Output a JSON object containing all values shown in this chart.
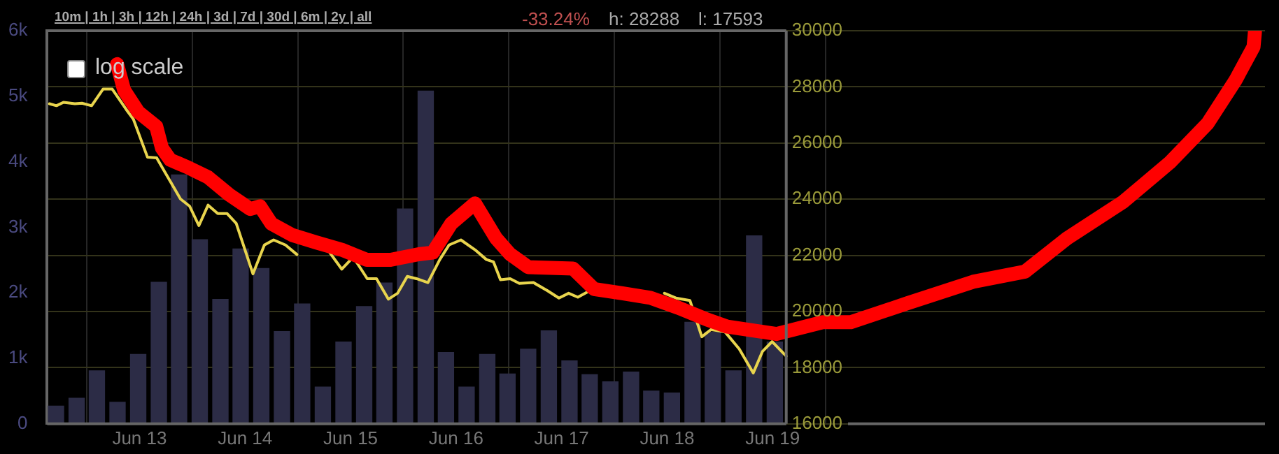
{
  "chart_data": {
    "type": "line",
    "legend": false,
    "grid": true,
    "annotations": [
      "10m | 1h | 3h | 12h | 24h | 3d | 7d | 30d | 6m | 2y | all",
      "-33.24%",
      "h: 28288",
      "l: 17593",
      "log scale"
    ],
    "xlim": [
      "--06-12T03:00",
      "--06-23T16:00"
    ],
    "xticks": [
      {
        "value": "--06-13",
        "label": "Jun 13"
      },
      {
        "value": "--06-14",
        "label": "Jun 14"
      },
      {
        "value": "--06-15",
        "label": "Jun 15"
      },
      {
        "value": "--06-16",
        "label": "Jun 16"
      },
      {
        "value": "--06-17",
        "label": "Jun 17"
      },
      {
        "value": "--06-18",
        "label": "Jun 18"
      },
      {
        "value": "--06-19",
        "label": "Jun 19"
      }
    ],
    "ylim": [
      0,
      6000
    ],
    "yticks": [
      {
        "value": 0,
        "label": "0"
      },
      {
        "value": 1000,
        "label": "1k"
      },
      {
        "value": 2000,
        "label": "2k"
      },
      {
        "value": 3000,
        "label": "3k"
      },
      {
        "value": 4000,
        "label": "4k"
      },
      {
        "value": 5000,
        "label": "5k"
      },
      {
        "value": 6000,
        "label": "6k"
      }
    ],
    "y2lim": [
      16000,
      30000
    ],
    "y2ticks": [
      16000,
      18000,
      20000,
      22000,
      24000,
      26000,
      28000,
      30000
    ],
    "series": [
      {
        "type": "bar",
        "axis": "y",
        "color": "#2c2c46",
        "x": [
          "--06-12T05:00",
          "--06-12T09:42",
          "--06-12T14:18",
          "--06-12T19:00",
          "--06-12T23:42",
          "--06-13T04:24",
          "--06-13T09:00",
          "--06-13T13:42",
          "--06-13T18:24",
          "--06-13T23:00",
          "--06-14T03:42",
          "--06-14T08:24",
          "--06-14T13:00",
          "--06-14T17:42",
          "--06-14T22:24",
          "--06-15T03:06",
          "--06-15T07:42",
          "--06-15T12:24",
          "--06-15T17:06",
          "--06-15T21:42",
          "--06-16T02:24",
          "--06-16T07:06",
          "--06-16T11:42",
          "--06-16T16:24",
          "--06-16T21:06",
          "--06-17T01:48",
          "--06-17T06:24",
          "--06-17T11:06",
          "--06-17T15:48",
          "--06-17T20:24",
          "--06-18T01:06",
          "--06-18T05:48",
          "--06-18T10:24",
          "--06-18T15:06",
          "--06-18T19:48",
          "--06-19T00:30"
        ],
        "values": [
          270,
          390,
          810,
          330,
          1060,
          2160,
          3800,
          2810,
          1900,
          2670,
          2370,
          1410,
          1830,
          560,
          1250,
          1790,
          2150,
          3280,
          5080,
          1090,
          560,
          1060,
          760,
          1140,
          1420,
          960,
          750,
          640,
          790,
          500,
          470,
          1550,
          1400,
          810,
          2870,
          1250
        ]
      },
      {
        "axis": "y2",
        "color": "#e8d44d",
        "x": [
          "--06-12T03:30",
          "--06-12T05:06",
          "--06-12T06:42",
          "--06-12T09:18",
          "--06-12T10:54",
          "--06-12T13:06",
          "--06-12T15:42",
          "--06-12T17:48",
          "--06-12T21:00",
          "--06-12T22:36",
          "--06-13T01:48",
          "--06-13T03:54",
          "--06-13T05:30",
          "--06-13T09:18",
          "--06-13T11:24",
          "--06-13T13:30",
          "--06-13T15:36",
          "--06-13T17:48",
          "--06-13T19:54",
          "--06-13T22:00",
          "--06-14T01:48",
          "--06-14T04:24",
          "--06-14T06:30",
          "--06-14T09:12",
          "--06-14T11:48",
          "--06-14T15:36",
          "--06-14T18:48",
          "--06-14T22:00",
          "--06-15T00:36",
          "--06-15T03:48",
          "--06-15T05:54",
          "--06-15T08:36",
          "--06-15T10:42",
          "--06-15T12:54",
          "--06-15T15:00",
          "--06-15T17:36",
          "--06-15T20:18",
          "--06-15T22:24",
          "--06-16T01:06",
          "--06-16T04:18",
          "--06-16T06:54",
          "--06-16T08:30",
          "--06-16T10:06",
          "--06-16T12:18",
          "--06-16T14:24",
          "--06-16T17:36",
          "--06-16T20:48",
          "--06-16T23:24",
          "--06-17T01:36",
          "--06-17T03:42",
          "--06-17T06:24",
          "--06-17T11:42",
          "--06-17T18:06",
          "--06-17T23:24",
          "--06-18T02:00",
          "--06-18T05:12",
          "--06-18T07:54",
          "--06-18T10:00",
          "--06-18T13:12",
          "--06-18T16:24",
          "--06-18T19:36",
          "--06-18T21:42",
          "--06-18T23:54",
          "--06-19T03:06"
        ],
        "values": [
          27400,
          27330,
          27450,
          27400,
          27420,
          27330,
          27920,
          27920,
          27190,
          26850,
          25500,
          25470,
          25040,
          24010,
          23750,
          23060,
          23790,
          23490,
          23490,
          23140,
          21340,
          22370,
          22550,
          22370,
          22030,
          null,
          22200,
          21510,
          21940,
          21170,
          21170,
          20440,
          20650,
          21250,
          21170,
          21030,
          21850,
          22370,
          22550,
          22200,
          21850,
          21770,
          21130,
          21170,
          21000,
          21030,
          20740,
          20480,
          20650,
          20510,
          20740,
          null,
          null,
          20650,
          20480,
          20390,
          19100,
          19360,
          19270,
          18670,
          17810,
          18580,
          18930,
          18410
        ]
      },
      {
        "axis": "y2",
        "color": "#ff0000",
        "x": [
          "--06-12T18:54",
          "--06-12T20:30",
          "--06-12T23:42",
          "--06-13T03:48",
          "--06-13T05:06",
          "--06-13T07:00",
          "--06-13T10:54",
          "--06-13T15:36",
          "--06-13T20:24",
          "--06-14T01:12",
          "--06-14T03:24",
          "--06-14T06:00",
          "--06-14T10:48",
          "--06-14T16:12",
          "--06-14T22:00",
          "--06-15T03:42",
          "--06-15T09:06",
          "--06-15T15:30",
          "--06-15T18:42",
          "--06-15T22:54",
          "--06-16T04:18",
          "--06-16T09:06",
          "--06-16T12:18",
          "--06-16T16:24",
          "--06-17T02:36",
          "--06-17T07:24",
          "--06-17T13:48",
          "--06-17T20:12",
          "--06-18T02:36",
          "--06-18T09:00",
          "--06-18T13:42",
          "--06-19T00:54",
          "--06-19T11:24",
          "--06-19T17:48",
          "--06-20T06:36",
          "--06-20T21:36",
          "--06-21T09:24",
          "--06-21T19:00",
          "--06-22T07:42",
          "--06-22T18:18",
          "--06-23T02:54",
          "--06-23T09:18",
          "--06-23T13:24",
          "--06-23T13:42"
        ],
        "values": [
          28810,
          27880,
          27110,
          26590,
          25820,
          25400,
          25140,
          24780,
          24160,
          23650,
          23750,
          23130,
          22720,
          22460,
          22200,
          21840,
          21840,
          22040,
          22100,
          23130,
          23850,
          22610,
          22040,
          21580,
          21530,
          20800,
          20650,
          20490,
          20130,
          19720,
          19460,
          19200,
          19620,
          19620,
          20290,
          21060,
          21420,
          22610,
          23900,
          25300,
          26690,
          28240,
          29430,
          29950
        ]
      }
    ]
  }
}
